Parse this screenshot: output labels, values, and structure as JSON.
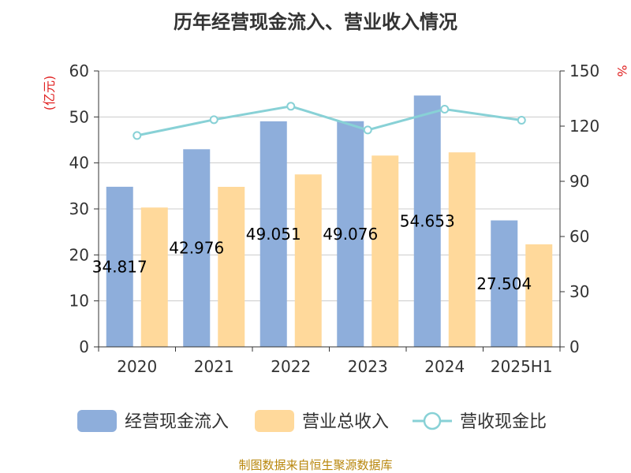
{
  "chart_data": {
    "type": "bar",
    "title": "历年经营现金流入、营业收入情况",
    "categories": [
      "2020",
      "2021",
      "2022",
      "2023",
      "2024",
      "2025H1"
    ],
    "series": [
      {
        "name": "经营现金流入",
        "type": "bar",
        "axis": "left",
        "color": "#8eaedb",
        "values": [
          34.817,
          42.976,
          49.051,
          49.076,
          54.653,
          27.504
        ]
      },
      {
        "name": "营业总收入",
        "type": "bar",
        "axis": "left",
        "color": "#ffd99b",
        "values": [
          30.3,
          34.8,
          37.5,
          41.6,
          42.3,
          22.3
        ]
      },
      {
        "name": "营收现金比",
        "type": "line",
        "axis": "right",
        "color": "#88d1d6",
        "values": [
          114.9,
          123.5,
          130.8,
          117.9,
          129.2,
          123.2
        ]
      }
    ],
    "data_labels": [
      "34.817",
      "42.976",
      "49.051",
      "49.076",
      "54.653",
      "27.504"
    ],
    "y_left": {
      "label": "(亿元)",
      "ylim": [
        0,
        60
      ],
      "ticks": [
        0,
        10,
        20,
        30,
        40,
        50,
        60
      ]
    },
    "y_right": {
      "label": "%",
      "ylim": [
        0,
        150
      ],
      "ticks": [
        0,
        30,
        60,
        90,
        120,
        150
      ]
    },
    "grid": true,
    "legend_position": "bottom",
    "source": "制图数据来自恒生聚源数据库"
  }
}
